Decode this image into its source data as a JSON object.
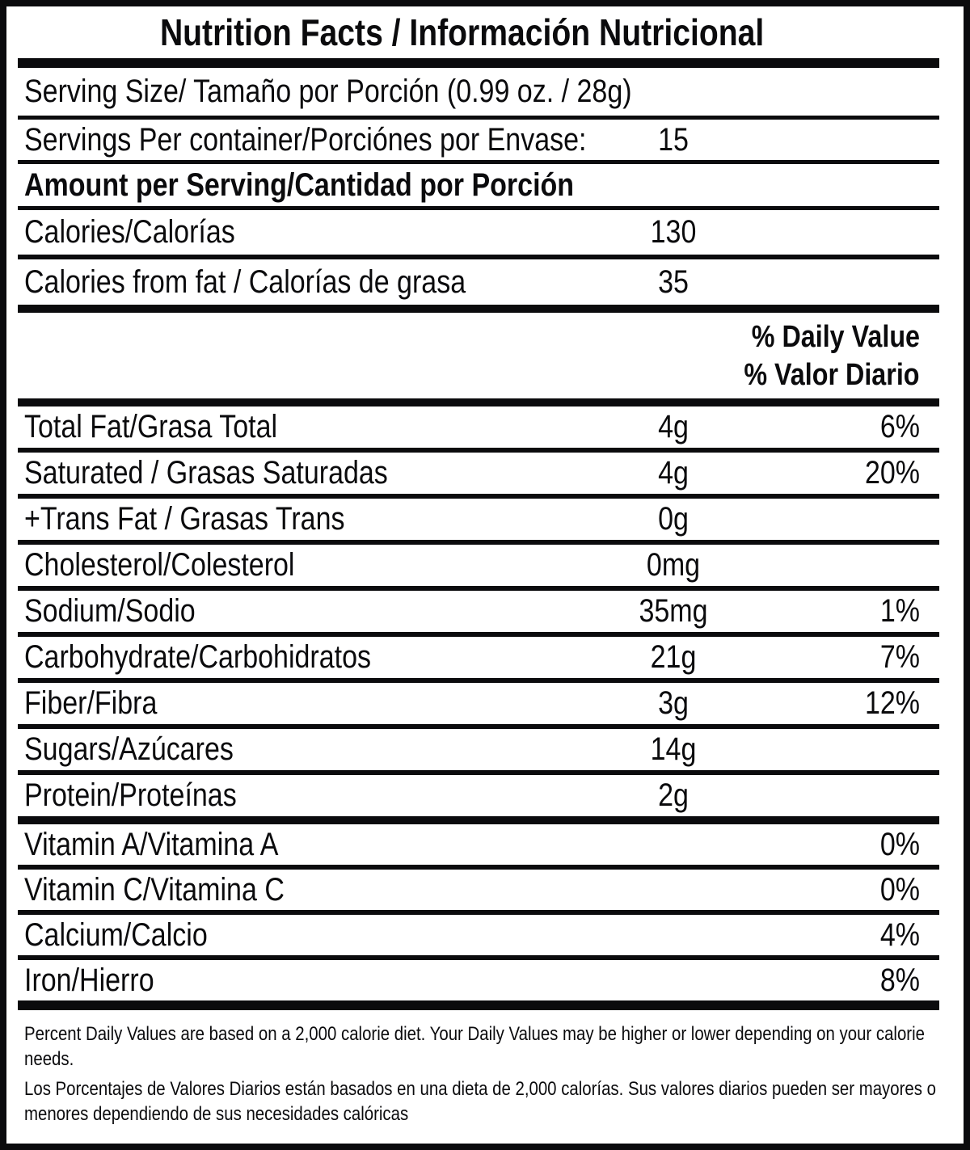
{
  "title": "Nutrition Facts / Información Nutricional",
  "serving": {
    "size": "Serving Size/ Tamaño por Porción  (0.99 oz. / 28g)",
    "per_container_label": "Servings Per container/Porciónes por Envase:",
    "per_container_value": "15"
  },
  "amount_per_serving": "Amount per Serving/Cantidad por Porción",
  "calories": {
    "label": "Calories/Calorías",
    "value": "130"
  },
  "calories_from_fat": {
    "label": "Calories from fat / Calorías de grasa",
    "value": "35"
  },
  "daily_value_header": {
    "en": "% Daily Value",
    "es": "% Valor Diario"
  },
  "nutrients": [
    {
      "label": "Total Fat/Grasa Total",
      "amount": "4g",
      "dv": "6%"
    },
    {
      "label": "Saturated / Grasas Saturadas",
      "amount": "4g",
      "dv": "20%"
    },
    {
      "label": "+Trans Fat / Grasas Trans",
      "amount": "0g",
      "dv": ""
    },
    {
      "label": "Cholesterol/Colesterol",
      "amount": "0mg",
      "dv": ""
    },
    {
      "label": "Sodium/Sodio",
      "amount": "35mg",
      "dv": "1%"
    },
    {
      "label": "Carbohydrate/Carbohidratos",
      "amount": "21g",
      "dv": "7%"
    },
    {
      "label": "Fiber/Fibra",
      "amount": "3g",
      "dv": "12%"
    },
    {
      "label": "Sugars/Azúcares",
      "amount": "14g",
      "dv": ""
    },
    {
      "label": "Protein/Proteínas",
      "amount": "2g",
      "dv": ""
    }
  ],
  "micronutrients": [
    {
      "label": "Vitamin A/Vitamina A",
      "dv": "0%"
    },
    {
      "label": "Vitamin C/Vitamina C",
      "dv": "0%"
    },
    {
      "label": "Calcium/Calcio",
      "dv": "4%"
    },
    {
      "label": "Iron/Hierro",
      "dv": "8%"
    }
  ],
  "footnote": {
    "en": "Percent Daily Values are based on a 2,000 calorie diet. Your Daily Values may be higher or lower depending on your calorie needs.",
    "es": "Los Porcentajes de Valores Diarios están basados en una dieta de 2,000 calorías. Sus valores diarios pueden ser mayores o menores dependiendo de sus necesidades calóricas"
  },
  "colors": {
    "ink": "#0b0b0d",
    "background": "#ffffff"
  }
}
